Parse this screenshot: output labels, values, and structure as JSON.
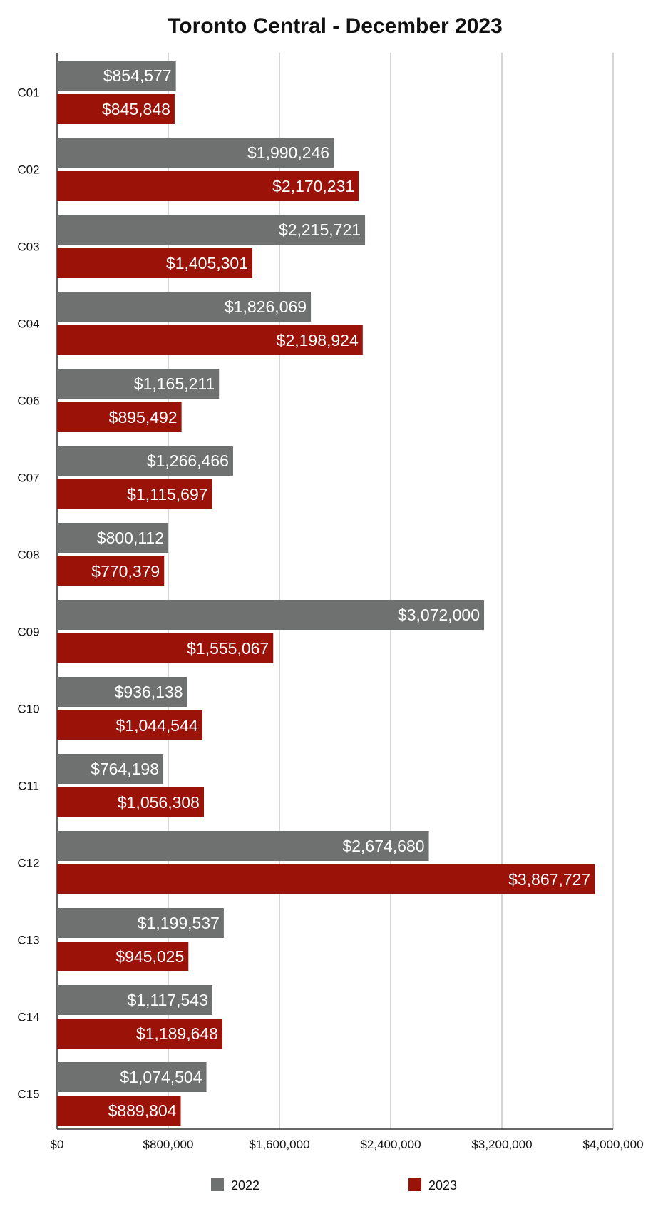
{
  "chart_data": {
    "type": "bar",
    "orientation": "horizontal",
    "title": "Toronto Central - December 2023",
    "xlabel": "",
    "ylabel": "",
    "xlim": [
      0,
      4000000
    ],
    "ticks": [
      0,
      800000,
      1600000,
      2400000,
      3200000,
      4000000
    ],
    "tick_labels": [
      "$0",
      "$800,000",
      "$1,600,000",
      "$2,400,000",
      "$3,200,000",
      "$4,000,000"
    ],
    "grid": true,
    "legend_position": "bottom",
    "categories": [
      "C01",
      "C02",
      "C03",
      "C04",
      "C06",
      "C07",
      "C08",
      "C09",
      "C10",
      "C11",
      "C12",
      "C13",
      "C14",
      "C15"
    ],
    "series": [
      {
        "name": "2022",
        "color": "#6e7170",
        "values": [
          854577,
          1990246,
          2215721,
          1826069,
          1165211,
          1266466,
          800112,
          3072000,
          936138,
          764198,
          2674680,
          1199537,
          1117543,
          1074504
        ],
        "labels": [
          "$854,577",
          "$1,990,246",
          "$2,215,721",
          "$1,826,069",
          "$1,165,211",
          "$1,266,466",
          "$800,112",
          "$3,072,000",
          "$936,138",
          "$764,198",
          "$2,674,680",
          "$1,199,537",
          "$1,117,543",
          "$1,074,504"
        ]
      },
      {
        "name": "2023",
        "color": "#9a1208",
        "values": [
          845848,
          2170231,
          1405301,
          2198924,
          895492,
          1115697,
          770379,
          1555067,
          1044544,
          1056308,
          3867727,
          945025,
          1189648,
          889804
        ],
        "labels": [
          "$845,848",
          "$2,170,231",
          "$1,405,301",
          "$2,198,924",
          "$895,492",
          "$1,115,697",
          "$770,379",
          "$1,555,067",
          "$1,044,544",
          "$1,056,308",
          "$3,867,727",
          "$945,025",
          "$1,189,648",
          "$889,804"
        ]
      }
    ]
  }
}
